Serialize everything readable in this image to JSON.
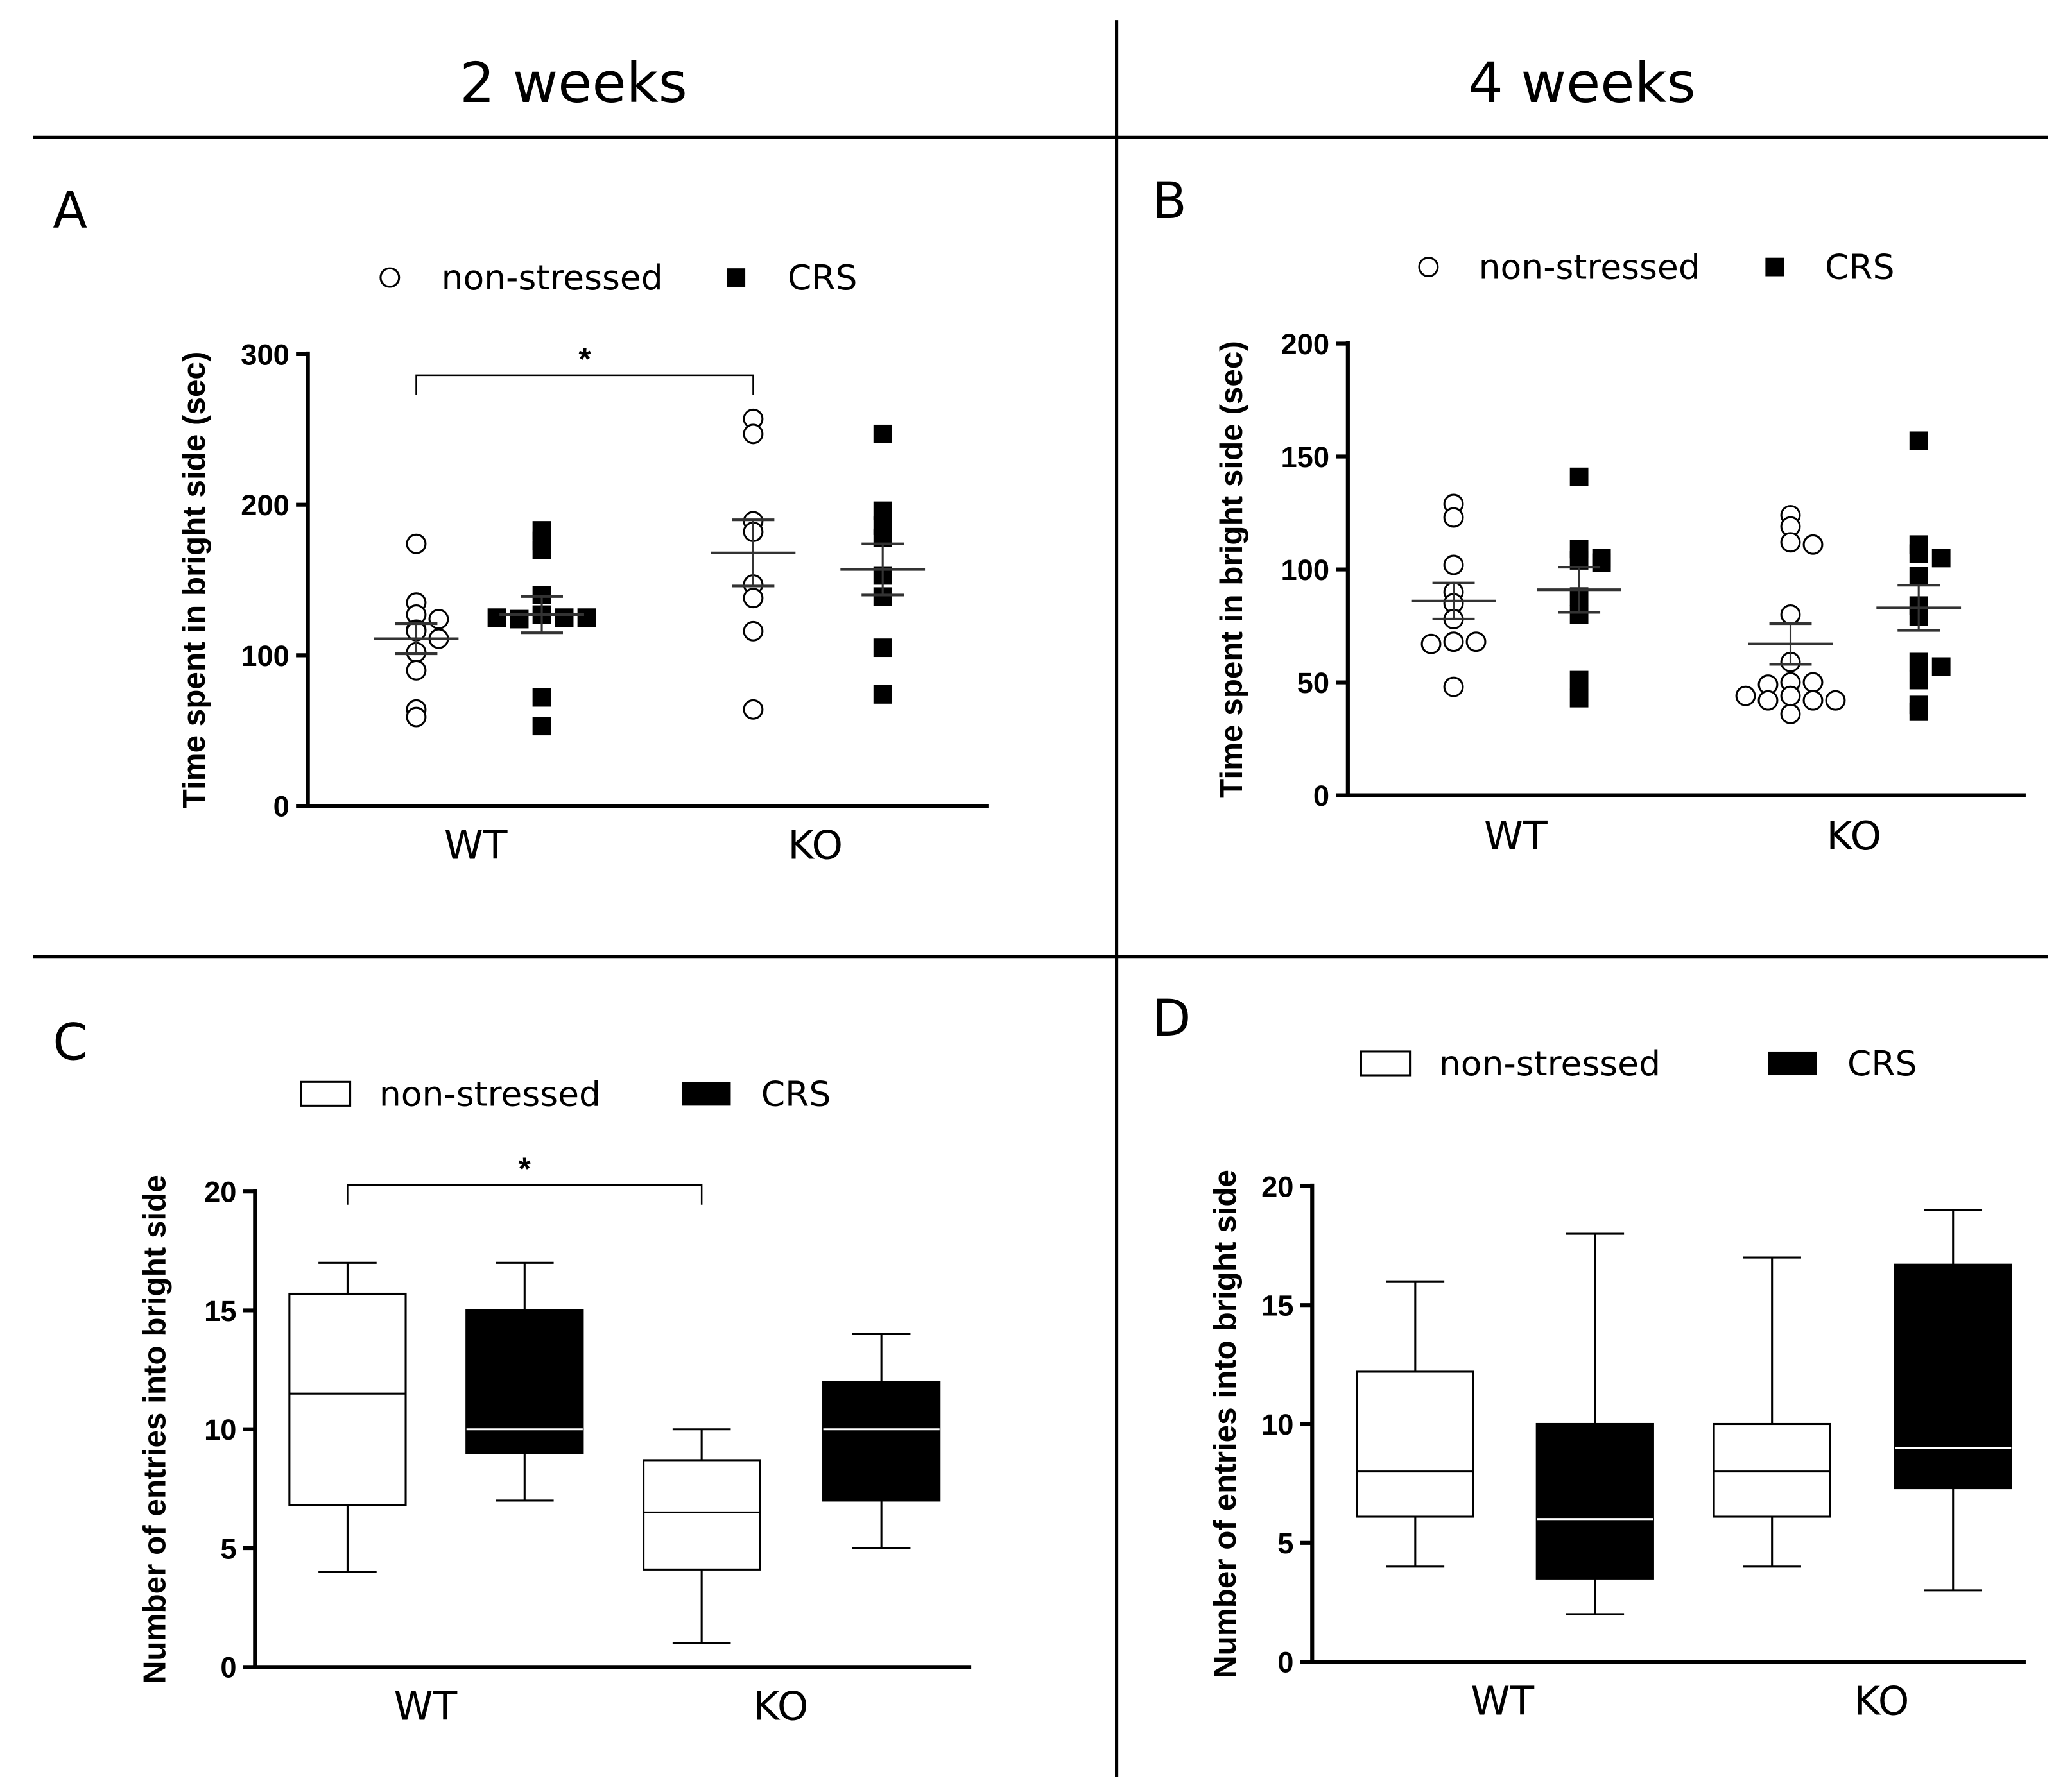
{
  "headers": {
    "left": "2 weeks",
    "right": "4 weeks"
  },
  "legend": {
    "ns": "non-stressed",
    "crs": "CRS"
  },
  "colors": {
    "ns_fill": "#ffffff",
    "crs_fill": "#000000",
    "line": "#000000"
  },
  "chart_data": [
    {
      "panel": "A",
      "type": "scatter",
      "ylabel": "Time spent in bright side (sec)",
      "categories": [
        "WT",
        "KO"
      ],
      "ylim": [
        0,
        300
      ],
      "yticks": [
        0,
        100,
        200,
        300
      ],
      "series": [
        {
          "name": "non-stressed",
          "group": "WT",
          "values": [
            174,
            135,
            127,
            124,
            117,
            116,
            111,
            102,
            90,
            64,
            59
          ],
          "mean": 111,
          "sem": 10
        },
        {
          "name": "CRS",
          "group": "WT",
          "values": [
            183,
            176,
            170,
            140,
            127,
            125,
            124,
            125,
            125,
            72,
            53
          ],
          "mean": 127,
          "sem": 12
        },
        {
          "name": "non-stressed",
          "group": "KO",
          "values": [
            257,
            247,
            189,
            182,
            147,
            138,
            116,
            64
          ],
          "mean": 168,
          "sem": 22
        },
        {
          "name": "CRS",
          "group": "KO",
          "values": [
            247,
            196,
            186,
            178,
            153,
            139,
            105,
            74
          ],
          "mean": 157,
          "sem": 17
        }
      ],
      "significance": {
        "from": 0,
        "to": 2,
        "label": "*"
      }
    },
    {
      "panel": "B",
      "type": "scatter",
      "ylabel": "Time spent in bright side (sec)",
      "categories": [
        "WT",
        "KO"
      ],
      "ylim": [
        0,
        200
      ],
      "yticks": [
        0,
        50,
        100,
        150,
        200
      ],
      "series": [
        {
          "name": "non-stressed",
          "group": "WT",
          "values": [
            129,
            123,
            102,
            90,
            85,
            78,
            68,
            68,
            67,
            48
          ],
          "mean": 86,
          "sem": 8
        },
        {
          "name": "CRS",
          "group": "WT",
          "values": [
            141,
            109,
            105,
            104,
            103,
            88,
            80,
            51,
            43
          ],
          "mean": 91,
          "sem": 10
        },
        {
          "name": "non-stressed",
          "group": "KO",
          "values": [
            124,
            119,
            112,
            111,
            80,
            59,
            50,
            50,
            49,
            44,
            42,
            42,
            42,
            44,
            36
          ],
          "mean": 67,
          "sem": 9
        },
        {
          "name": "CRS",
          "group": "KO",
          "values": [
            157,
            111,
            107,
            105,
            97,
            84,
            79,
            59,
            57,
            51,
            40,
            37
          ],
          "mean": 83,
          "sem": 10
        }
      ]
    },
    {
      "panel": "C",
      "type": "box",
      "ylabel": "Number of entries into bright side",
      "categories": [
        "WT",
        "KO"
      ],
      "ylim": [
        0,
        20
      ],
      "yticks": [
        0,
        5,
        10,
        15,
        20
      ],
      "series": [
        {
          "name": "non-stressed",
          "group": "WT",
          "min": 4,
          "q1": 6.8,
          "median": 11.5,
          "q3": 15.7,
          "max": 17
        },
        {
          "name": "CRS",
          "group": "WT",
          "min": 7,
          "q1": 9,
          "median": 10,
          "q3": 15,
          "max": 17
        },
        {
          "name": "non-stressed",
          "group": "KO",
          "min": 1,
          "q1": 4.1,
          "median": 6.5,
          "q3": 8.7,
          "max": 10
        },
        {
          "name": "CRS",
          "group": "KO",
          "min": 5,
          "q1": 7,
          "median": 10,
          "q3": 12,
          "max": 14
        }
      ],
      "significance": {
        "from": 0,
        "to": 2,
        "label": "*"
      }
    },
    {
      "panel": "D",
      "type": "box",
      "ylabel": "Number of entries into bright side",
      "categories": [
        "WT",
        "KO"
      ],
      "ylim": [
        0,
        20
      ],
      "yticks": [
        0,
        5,
        10,
        15,
        20
      ],
      "series": [
        {
          "name": "non-stressed",
          "group": "WT",
          "min": 4,
          "q1": 6.1,
          "median": 8,
          "q3": 12.2,
          "max": 16
        },
        {
          "name": "CRS",
          "group": "WT",
          "min": 2,
          "q1": 3.5,
          "median": 6,
          "q3": 10,
          "max": 18
        },
        {
          "name": "non-stressed",
          "group": "KO",
          "min": 4,
          "q1": 6.1,
          "median": 8,
          "q3": 10,
          "max": 17
        },
        {
          "name": "CRS",
          "group": "KO",
          "min": 3,
          "q1": 7.3,
          "median": 9,
          "q3": 16.7,
          "max": 19
        }
      ]
    }
  ]
}
